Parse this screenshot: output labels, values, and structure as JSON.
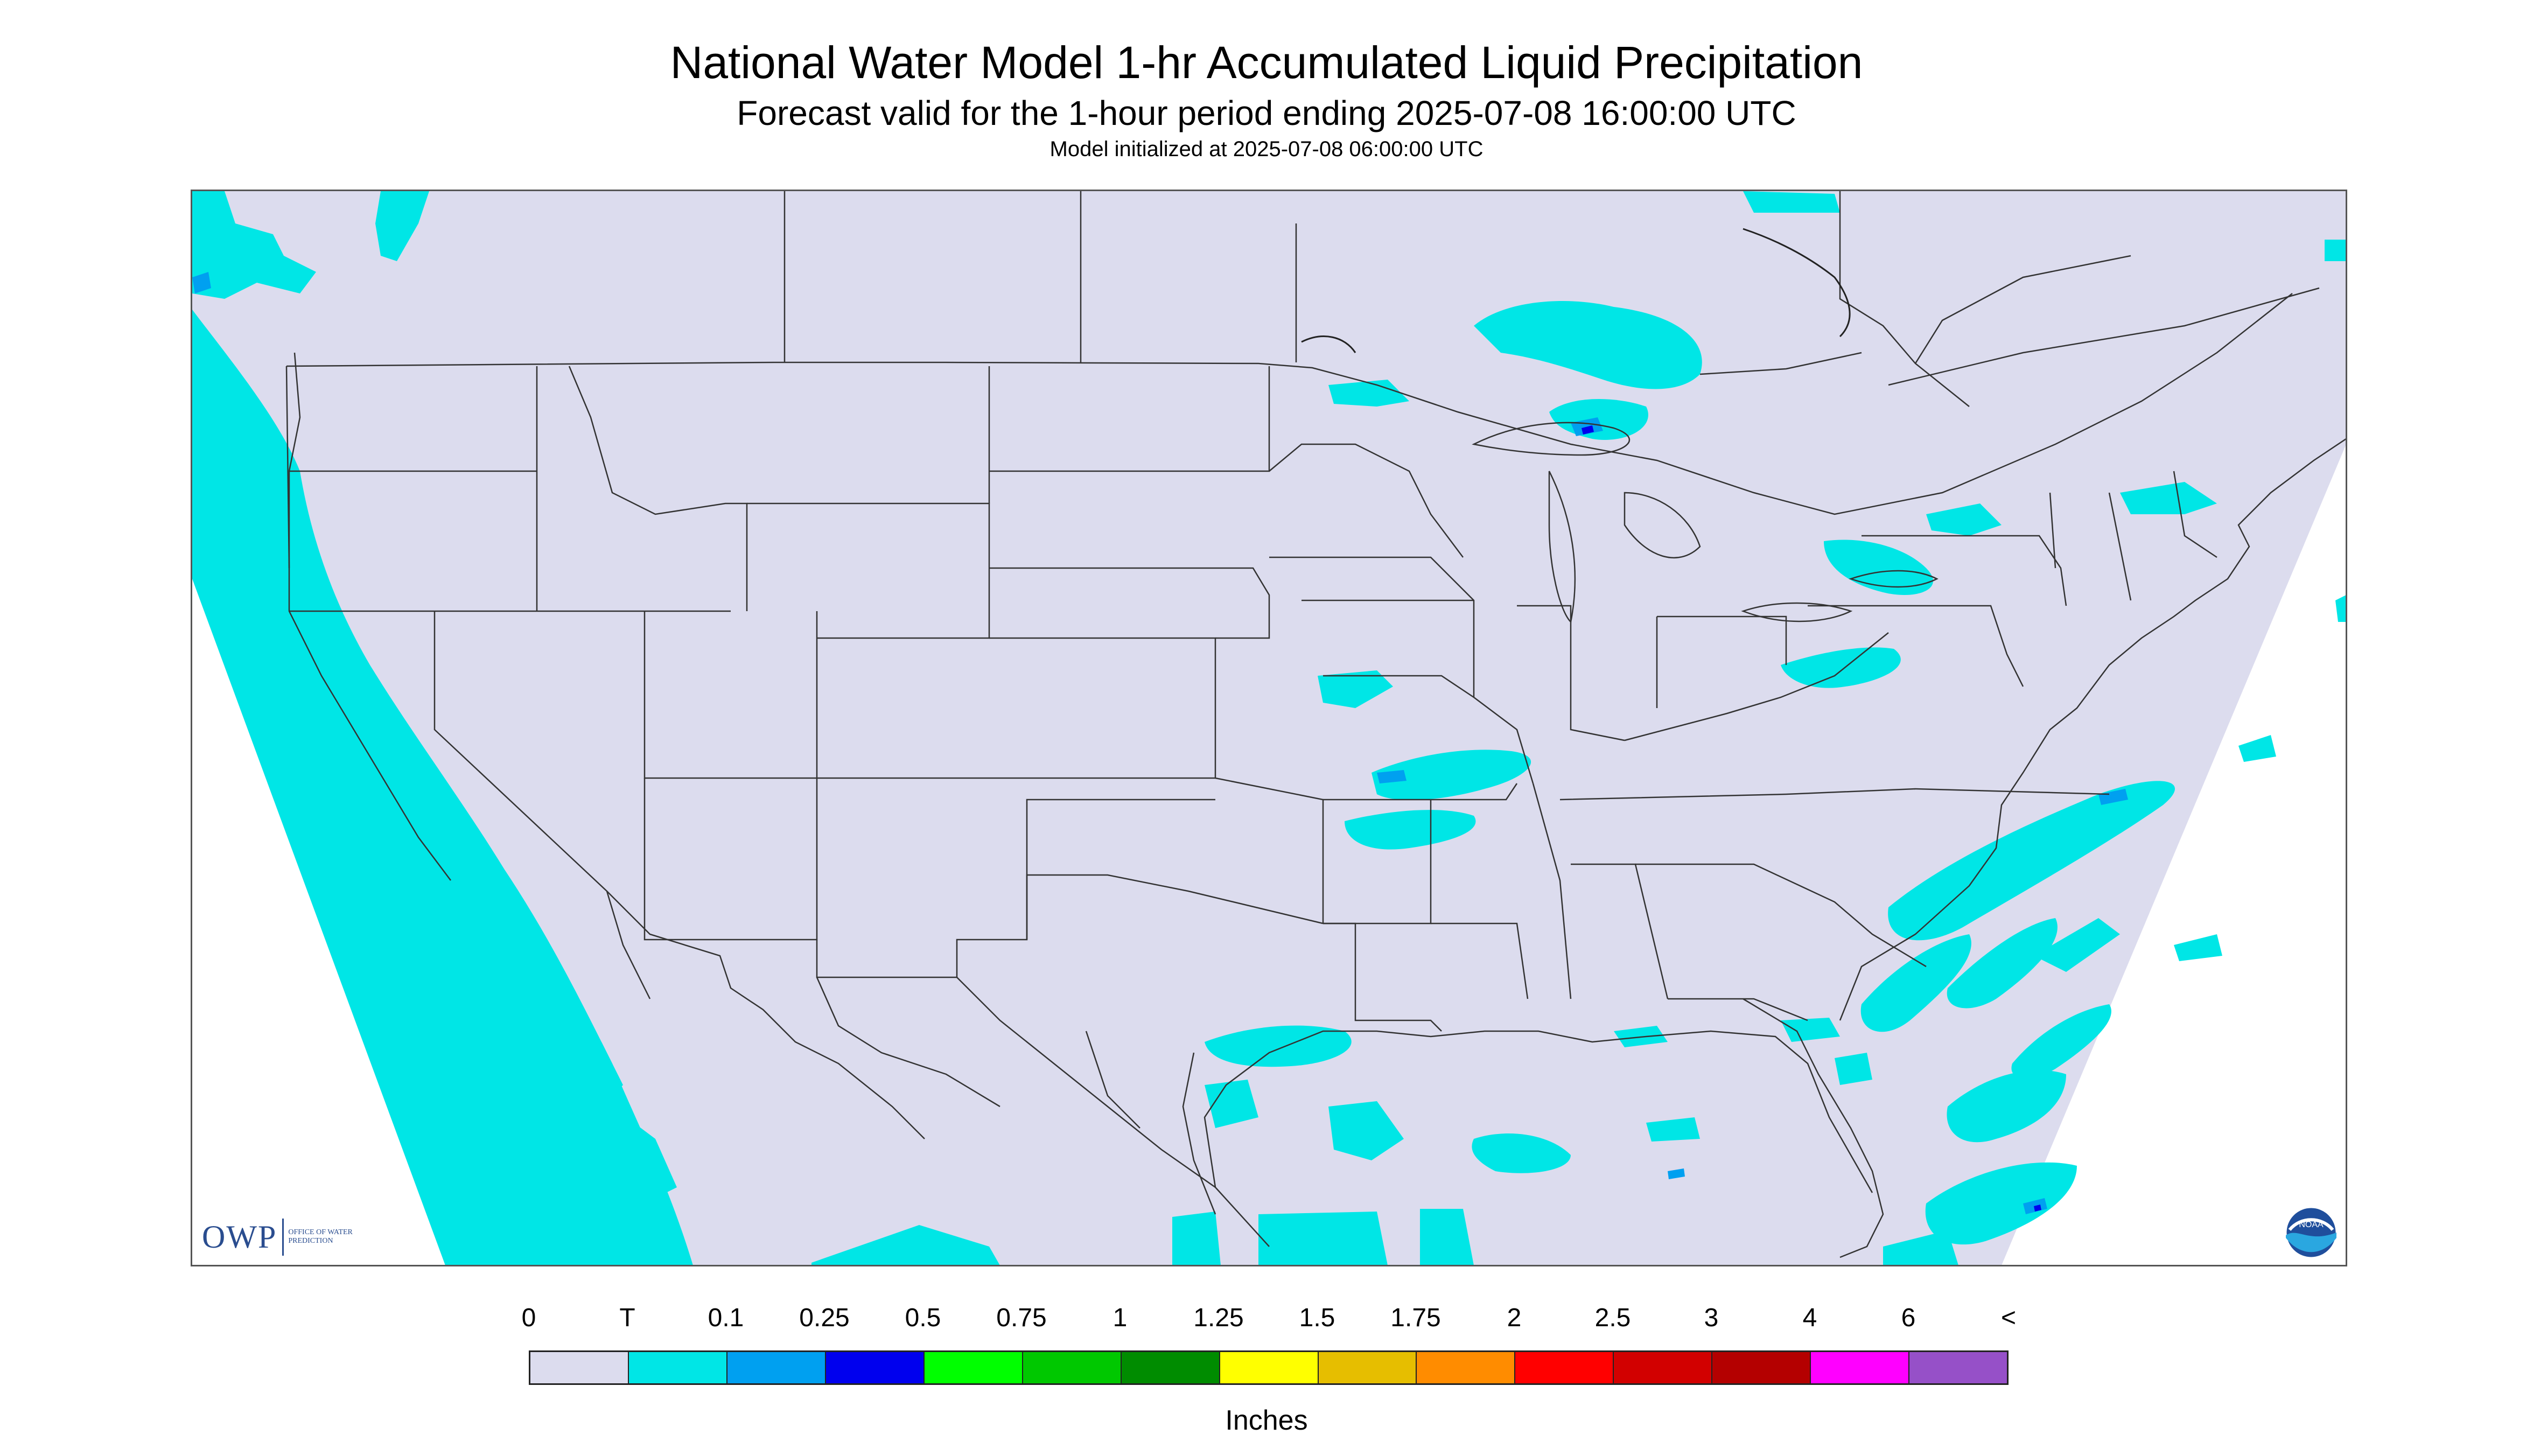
{
  "title": "National Water Model 1-hr Accumulated Liquid Precipitation",
  "subtitle": "Forecast valid for the 1-hour period ending 2025-07-08 16:00:00 UTC",
  "init_line": "Model initialized at 2025-07-08 06:00:00 UTC",
  "logos": {
    "owp_abbr": "OWP",
    "owp_full": "OFFICE OF WATER PREDICTION",
    "noaa_text": "NOAA"
  },
  "legend": {
    "units": "Inches",
    "labels": [
      "0",
      "T",
      "0.1",
      "0.25",
      "0.5",
      "0.75",
      "1",
      "1.25",
      "1.5",
      "1.75",
      "2",
      "2.5",
      "3",
      "4",
      "6",
      "<"
    ],
    "colors": [
      "#dcdcee",
      "#00e6e6",
      "#00a0f0",
      "#0000ee",
      "#00ff00",
      "#00c800",
      "#008c00",
      "#ffff00",
      "#e6be00",
      "#ff8c00",
      "#ff0000",
      "#d20000",
      "#b40000",
      "#ff00ff",
      "#9650c8"
    ]
  },
  "map": {
    "background_color": "#dcdcee",
    "boundary_color": "#333333",
    "offgrid_color": "#ffffff"
  }
}
